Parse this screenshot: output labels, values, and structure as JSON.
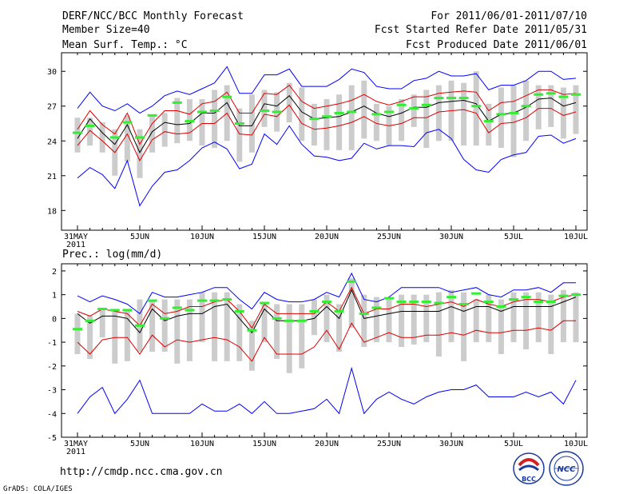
{
  "header": {
    "title": "DERF/NCC/BCC Monthly Forecast",
    "member_size": "Member Size=40",
    "variable_label": "Mean Surf. Temp.: °C",
    "forecast_period": "For 2011/06/01-2011/07/10",
    "fcst_started": "Fcst Started Refer Date 2011/05/31",
    "fcst_produced": "Fcst Produced Date 2011/06/01"
  },
  "footer": {
    "url": "http://cmdp.ncc.cma.gov.cn",
    "credit": "GrADS: COLA/IGES",
    "logo_left_text": "BCC",
    "logo_right_text": "NCC"
  },
  "colors": {
    "min_max": "#0000ff",
    "spread": "#dd0000",
    "mean": "#000000",
    "observed": "#33ee33",
    "box": "#cccccc"
  },
  "chart_data": [
    {
      "type": "line",
      "title": "Mean Surf. Temp.: °C",
      "ylabel": "°C",
      "ylim": [
        16.3,
        31.6
      ],
      "yticks": [
        18,
        21,
        24,
        27,
        30
      ],
      "grid": false,
      "x": [
        0,
        1,
        2,
        3,
        4,
        5,
        6,
        7,
        8,
        9,
        10,
        11,
        12,
        13,
        14,
        15,
        16,
        17,
        18,
        19,
        20,
        21,
        22,
        23,
        24,
        25,
        26,
        27,
        28,
        29,
        30,
        31,
        32,
        33,
        34,
        35,
        36,
        37,
        38,
        39,
        40
      ],
      "xlim": [
        0,
        40
      ],
      "xtick_positions": [
        0,
        5,
        10,
        15,
        20,
        25,
        30,
        35,
        40
      ],
      "xtick_labels": [
        "31MAY",
        "5JUN",
        "10JUN",
        "15JUN",
        "20JUN",
        "25JUN",
        "30JUN",
        "5JUL",
        "10JUL"
      ],
      "xtick_sublabel": "2011",
      "series": [
        {
          "name": "max",
          "values": [
            26.8,
            28.2,
            27.0,
            26.6,
            27.2,
            26.4,
            27.0,
            27.9,
            28.3,
            28.0,
            28.5,
            29.0,
            30.4,
            28.1,
            28.1,
            29.7,
            29.7,
            30.2,
            28.7,
            28.7,
            28.7,
            29.3,
            30.2,
            29.9,
            28.7,
            28.5,
            28.5,
            29.2,
            29.4,
            30.0,
            29.6,
            29.6,
            29.8,
            28.4,
            28.8,
            28.8,
            29.2,
            30.0,
            30.0,
            29.3,
            29.4
          ]
        },
        {
          "name": "upper",
          "values": [
            25.0,
            26.6,
            25.4,
            24.6,
            26.4,
            23.7,
            25.5,
            26.6,
            26.6,
            26.3,
            27.2,
            27.4,
            28.2,
            26.4,
            26.4,
            28.1,
            28.0,
            28.8,
            27.4,
            26.8,
            27.0,
            27.2,
            27.5,
            28.0,
            27.4,
            27.1,
            27.4,
            27.8,
            27.8,
            28.1,
            28.2,
            28.3,
            28.2,
            26.6,
            27.3,
            27.4,
            27.9,
            28.4,
            28.4,
            28.0,
            28.1
          ]
        },
        {
          "name": "mean",
          "values": [
            24.2,
            25.9,
            24.7,
            23.7,
            25.4,
            23.0,
            24.8,
            25.6,
            25.4,
            25.5,
            26.4,
            26.4,
            27.3,
            25.3,
            25.3,
            27.2,
            27.0,
            27.9,
            26.5,
            25.9,
            26.0,
            26.1,
            26.5,
            27.0,
            26.4,
            26.1,
            26.4,
            26.9,
            26.9,
            27.3,
            27.4,
            27.5,
            27.2,
            25.7,
            26.3,
            26.4,
            26.9,
            27.6,
            27.7,
            27.0,
            27.3
          ]
        },
        {
          "name": "lower",
          "values": [
            23.6,
            24.9,
            24.0,
            23.0,
            24.6,
            22.3,
            24.1,
            24.8,
            24.6,
            24.7,
            25.5,
            25.5,
            26.4,
            24.6,
            24.5,
            26.3,
            26.1,
            27.1,
            25.5,
            25.0,
            25.1,
            25.3,
            25.6,
            26.1,
            25.5,
            25.3,
            25.5,
            26.0,
            26.0,
            26.5,
            26.6,
            26.7,
            26.4,
            24.7,
            25.5,
            25.6,
            26.0,
            26.8,
            26.8,
            26.2,
            26.5
          ]
        },
        {
          "name": "min",
          "values": [
            20.8,
            21.7,
            21.1,
            19.9,
            22.3,
            18.4,
            20.1,
            21.3,
            21.5,
            22.3,
            23.4,
            23.9,
            23.3,
            21.6,
            22.0,
            24.6,
            23.7,
            25.3,
            23.7,
            22.7,
            22.6,
            22.3,
            22.5,
            23.8,
            23.3,
            23.6,
            23.6,
            23.5,
            24.7,
            25.0,
            24.2,
            22.4,
            21.5,
            21.3,
            22.4,
            22.8,
            23.0,
            24.4,
            24.5,
            23.8,
            24.2
          ]
        },
        {
          "name": "box_top",
          "values": [
            26.0,
            26.0,
            25.6,
            25.0,
            26.2,
            25.0,
            26.2,
            26.4,
            27.7,
            27.6,
            27.6,
            28.4,
            28.8,
            26.8,
            28.0,
            28.4,
            28.2,
            29.0,
            28.6,
            27.2,
            27.6,
            28.0,
            28.8,
            29.2,
            27.2,
            27.0,
            27.6,
            28.0,
            28.4,
            28.8,
            29.2,
            29.0,
            30.0,
            27.2,
            28.6,
            28.8,
            29.2,
            28.8,
            28.8,
            28.6,
            28.8
          ]
        },
        {
          "name": "box_bottom",
          "values": [
            23.0,
            23.6,
            23.0,
            21.0,
            22.2,
            20.8,
            23.0,
            23.5,
            23.8,
            24.0,
            23.6,
            23.4,
            24.0,
            22.2,
            23.0,
            25.2,
            24.8,
            25.6,
            24.0,
            23.6,
            23.2,
            23.2,
            23.2,
            24.2,
            24.0,
            23.6,
            24.0,
            25.2,
            23.4,
            24.0,
            24.0,
            23.6,
            23.6,
            23.6,
            23.4,
            22.6,
            24.0,
            25.0,
            25.2,
            24.2,
            24.6
          ]
        },
        {
          "name": "observed",
          "values": [
            24.7,
            25.3,
            null,
            24.3,
            25.6,
            24.3,
            26.2,
            null,
            27.3,
            25.7,
            26.5,
            26.6,
            27.8,
            25.5,
            null,
            26.6,
            26.5,
            null,
            null,
            25.9,
            26.1,
            26.4,
            26.5,
            null,
            26.3,
            26.5,
            27.1,
            26.8,
            27.1,
            27.7,
            27.7,
            27.7,
            27.0,
            25.7,
            26.3,
            26.4,
            27.0,
            28.0,
            28.1,
            27.8,
            28.0
          ]
        }
      ]
    },
    {
      "type": "line",
      "title": "Prec.: log(mm/d)",
      "ylabel": "log(mm/d)",
      "ylim": [
        -5,
        2.3
      ],
      "yticks": [
        -5,
        -4,
        -3,
        -2,
        -1,
        0,
        1,
        2
      ],
      "grid": false,
      "x": [
        0,
        1,
        2,
        3,
        4,
        5,
        6,
        7,
        8,
        9,
        10,
        11,
        12,
        13,
        14,
        15,
        16,
        17,
        18,
        19,
        20,
        21,
        22,
        23,
        24,
        25,
        26,
        27,
        28,
        29,
        30,
        31,
        32,
        33,
        34,
        35,
        36,
        37,
        38,
        39,
        40
      ],
      "xlim": [
        0,
        40
      ],
      "xtick_positions": [
        0,
        5,
        10,
        15,
        20,
        25,
        30,
        35,
        40
      ],
      "xtick_labels": [
        "31MAY",
        "5JUN",
        "10JUN",
        "15JUN",
        "20JUN",
        "25JUN",
        "30JUN",
        "5JUL",
        "10JUL"
      ],
      "xtick_sublabel": "2011",
      "series": [
        {
          "name": "max",
          "values": [
            0.95,
            0.7,
            0.95,
            0.8,
            0.6,
            0.2,
            1.1,
            0.9,
            0.9,
            1.0,
            1.1,
            1.3,
            1.3,
            0.8,
            0.4,
            1.1,
            0.8,
            0.7,
            0.7,
            0.8,
            1.1,
            0.9,
            1.9,
            0.8,
            0.7,
            0.9,
            1.3,
            1.3,
            1.3,
            1.3,
            1.1,
            1.2,
            1.3,
            1.0,
            0.9,
            1.2,
            1.2,
            1.3,
            1.1,
            1.5,
            1.5
          ]
        },
        {
          "name": "upper",
          "values": [
            0.3,
            0.1,
            0.4,
            0.3,
            0.2,
            -0.3,
            0.6,
            0.2,
            0.3,
            0.5,
            0.5,
            0.7,
            0.8,
            0.3,
            -0.4,
            0.6,
            0.2,
            0.2,
            0.2,
            0.2,
            0.7,
            0.3,
            1.3,
            0.2,
            0.4,
            0.4,
            0.6,
            0.6,
            0.5,
            0.6,
            0.7,
            0.5,
            0.8,
            0.6,
            0.5,
            0.7,
            0.8,
            0.8,
            0.7,
            0.9,
            1.0
          ]
        },
        {
          "name": "mean",
          "values": [
            0.2,
            -0.2,
            0.1,
            0.1,
            0.0,
            -0.6,
            0.4,
            -0.1,
            0.1,
            0.2,
            0.2,
            0.5,
            0.6,
            0.0,
            -0.6,
            0.4,
            -0.1,
            -0.1,
            -0.1,
            0.0,
            0.5,
            0.0,
            1.2,
            0.0,
            0.1,
            0.2,
            0.3,
            0.3,
            0.3,
            0.3,
            0.5,
            0.3,
            0.5,
            0.5,
            0.3,
            0.5,
            0.5,
            0.5,
            0.5,
            0.7,
            0.9
          ]
        },
        {
          "name": "lower",
          "values": [
            -1.0,
            -1.5,
            -0.9,
            -0.8,
            -0.8,
            -1.5,
            -0.7,
            -1.2,
            -0.9,
            -1.0,
            -0.9,
            -0.8,
            -0.9,
            -1.2,
            -1.8,
            -0.8,
            -1.5,
            -1.5,
            -1.5,
            -1.2,
            -0.5,
            -1.3,
            -0.2,
            -1.0,
            -0.8,
            -0.6,
            -0.8,
            -0.8,
            -0.7,
            -0.7,
            -0.6,
            -0.7,
            -0.5,
            -0.6,
            -0.6,
            -0.5,
            -0.5,
            -0.4,
            -0.5,
            -0.1,
            -0.1
          ]
        },
        {
          "name": "min",
          "values": [
            -4.0,
            -3.3,
            -2.9,
            -4.0,
            -3.4,
            -2.6,
            -4.0,
            -4.0,
            -4.0,
            -4.0,
            -3.6,
            -3.9,
            -3.9,
            -3.6,
            -4.0,
            -3.5,
            -4.0,
            -4.0,
            -3.9,
            -3.8,
            -3.4,
            -4.0,
            -2.1,
            -4.0,
            -3.4,
            -3.1,
            -3.4,
            -3.6,
            -3.3,
            -3.1,
            -3.0,
            -3.0,
            -2.8,
            -3.3,
            -3.3,
            -3.3,
            -3.1,
            -3.3,
            -3.1,
            -3.6,
            -2.6
          ]
        },
        {
          "name": "box_top",
          "values": [
            0.2,
            0.1,
            0.4,
            0.3,
            0.4,
            0.8,
            0.8,
            0.8,
            0.8,
            0.8,
            1.1,
            1.1,
            1.1,
            0.6,
            -0.1,
            0.6,
            0.6,
            0.6,
            0.6,
            0.8,
            1.0,
            0.6,
            1.7,
            1.0,
            0.9,
            0.9,
            1.0,
            1.0,
            1.0,
            1.1,
            1.2,
            1.1,
            0.8,
            1.0,
            0.8,
            1.1,
            1.1,
            1.1,
            1.0,
            1.2,
            1.1
          ]
        },
        {
          "name": "box_bottom",
          "values": [
            -1.5,
            -1.7,
            -0.8,
            -1.9,
            -1.8,
            -1.4,
            -1.4,
            -1.4,
            -1.9,
            -1.8,
            -1.0,
            -1.8,
            -1.8,
            -1.8,
            -2.2,
            -1.0,
            -1.7,
            -2.3,
            -2.1,
            -0.7,
            -1.0,
            -1.4,
            -0.4,
            -1.2,
            -1.0,
            -1.0,
            -1.2,
            -1.1,
            -1.0,
            -1.6,
            -1.0,
            -1.8,
            -1.0,
            -1.0,
            -1.5,
            -1.0,
            -1.3,
            -1.0,
            -1.5,
            -1.0,
            -1.0
          ]
        },
        {
          "name": "observed",
          "values": [
            -0.45,
            -0.1,
            0.4,
            0.35,
            0.35,
            -0.3,
            0.75,
            0.0,
            0.45,
            0.35,
            0.75,
            0.75,
            0.8,
            0.3,
            -0.5,
            0.65,
            0.0,
            -0.1,
            -0.1,
            0.3,
            0.7,
            0.3,
            1.55,
            0.2,
            0.45,
            0.85,
            0.7,
            0.7,
            0.7,
            0.65,
            0.9,
            0.6,
            1.05,
            0.7,
            0.5,
            0.8,
            0.9,
            0.7,
            0.7,
            0.95,
            1.0
          ]
        }
      ]
    }
  ]
}
